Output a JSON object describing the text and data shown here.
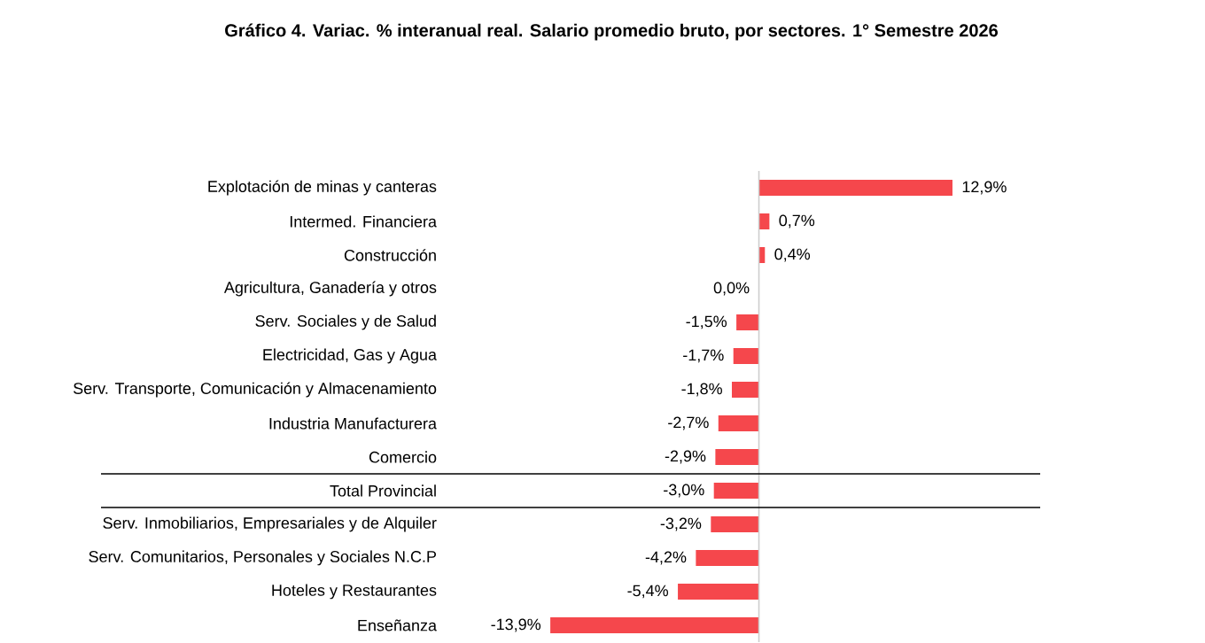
{
  "chart_data": {
    "type": "bar",
    "orientation": "horizontal",
    "title": "Gráfico 4. Variac. % interanual real. Salario promedio bruto, por sectores. 1° Semestre 2026",
    "categories": [
      "Explotación de minas y canteras",
      "Intermed. Financiera",
      "Construcción",
      "Agricultura, Ganadería y otros",
      "Serv. Sociales y de Salud",
      "Electricidad, Gas y Agua",
      "Serv. Transporte, Comunicación y Almacenamiento",
      "Industria Manufacturera",
      "Comercio",
      "Total Provincial",
      "Serv. Inmobiliarios, Empresariales y de Alquiler",
      "Serv. Comunitarios, Personales y Sociales N.C.P",
      "Hoteles y Restaurantes",
      "Enseñanza"
    ],
    "values": [
      12.9,
      0.7,
      0.4,
      0.0,
      -1.5,
      -1.7,
      -1.8,
      -2.7,
      -2.9,
      -3.0,
      -3.2,
      -4.2,
      -5.4,
      -13.9
    ],
    "value_labels": [
      "12,9%",
      "0,7%",
      "0,4%",
      "0,0%",
      "-1,5%",
      "-1,7%",
      "-1,8%",
      "-2,7%",
      "-2,9%",
      "-3,0%",
      "-3,2%",
      "-4,2%",
      "-5,4%",
      "-13,9%"
    ],
    "color": "#f5474c",
    "tick_labels": "y"
  }
}
